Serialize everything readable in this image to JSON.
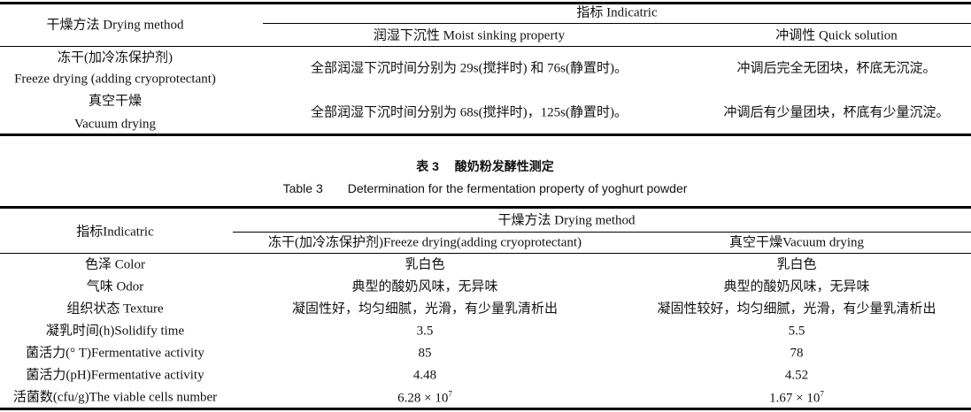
{
  "table2": {
    "col_header": "干燥方法 Drying method",
    "group_header": "指标 Indicatric",
    "sub_headers": [
      "润湿下沉性 Moist sinking property",
      "冲调性 Quick solution"
    ],
    "rows": [
      {
        "method_cn": "冻干(加冷冻保护剂)",
        "method_en": "Freeze drying (adding cryoprotectant)",
        "moist": "全部润湿下沉时间分别为 29s(搅拌时) 和 76s(静置时)。",
        "quick": "冲调后完全无团块，杯底无沉淀。"
      },
      {
        "method_cn": "真空干燥",
        "method_en": "Vacuum drying",
        "moist": "全部润湿下沉时间分别为 68s(搅拌时)，125s(静置时)。",
        "quick": "冲调后有少量团块，杯底有少量沉淀。"
      }
    ]
  },
  "table3": {
    "caption_cn": "表 3　 酸奶粉发酵性测定",
    "caption_en": "Table 3　　Determination for the fermentation property of yoghurt powder",
    "col_header": "指标Indicatric",
    "group_header": "干燥方法 Drying method",
    "sub_headers": [
      "冻干(加冷冻保护剂)Freeze drying(adding cryoprotectant)",
      "真空干燥Vacuum drying"
    ],
    "rows": [
      {
        "label": "色泽 Color",
        "freeze": "乳白色",
        "vacuum": "乳白色"
      },
      {
        "label": "气味 Odor",
        "freeze": "典型的酸奶风味，无异味",
        "vacuum": "典型的酸奶风味，无异味"
      },
      {
        "label": "组织状态 Texture",
        "freeze": "凝固性好，均匀细腻，光滑，有少量乳清析出",
        "vacuum": "凝固性较好，均匀细腻，光滑，有少量乳清析出"
      },
      {
        "label": "凝乳时间(h)Solidify time",
        "freeze": "3.5",
        "vacuum": "5.5"
      },
      {
        "label": "菌活力(° T)Fermentative activity",
        "freeze": "85",
        "vacuum": "78"
      },
      {
        "label": "菌活力(pH)Fermentative activity",
        "freeze": "4.48",
        "vacuum": "4.52"
      },
      {
        "label": "活菌数(cfu/g)The viable cells number",
        "freeze": "6.28 × 10",
        "freeze_exp": "7",
        "vacuum": "1.67 × 10",
        "vacuum_exp": "7"
      }
    ]
  }
}
